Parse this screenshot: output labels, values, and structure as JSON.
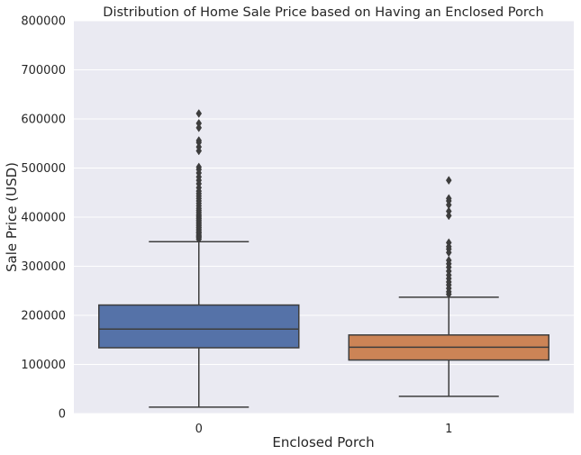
{
  "chart_data": {
    "type": "box",
    "title": "Distribution of Home Sale Price based on Having an Enclosed Porch",
    "xlabel": "Enclosed Porch",
    "ylabel": "Sale Price (USD)",
    "categories": [
      "0",
      "1"
    ],
    "ylim": [
      0,
      800000
    ],
    "yticks": [
      "0",
      "100000",
      "200000",
      "300000",
      "400000",
      "500000",
      "600000",
      "700000",
      "800000"
    ],
    "grid": true,
    "boxes": [
      {
        "category": "0",
        "color": "#5572a8",
        "whisker_low": 13000,
        "q1": 134000,
        "median": 172000,
        "q3": 221000,
        "whisker_high": 350000,
        "outliers": [
          355000,
          358000,
          360000,
          362000,
          365000,
          368000,
          370000,
          373000,
          376000,
          379000,
          382000,
          385000,
          388000,
          391000,
          394000,
          397000,
          400000,
          403000,
          406000,
          410000,
          414000,
          418000,
          423000,
          428000,
          433000,
          438000,
          443000,
          448000,
          453000,
          460000,
          468000,
          475000,
          482000,
          490000,
          497000,
          502000,
          535000,
          543000,
          552000,
          556000,
          582000,
          591000,
          611000
        ]
      },
      {
        "category": "1",
        "color": "#cc8456",
        "whisker_low": 35000,
        "q1": 109000,
        "median": 135000,
        "q3": 160000,
        "whisker_high": 237000,
        "outliers": [
          243000,
          248000,
          255000,
          262000,
          268000,
          275000,
          282000,
          290000,
          298000,
          305000,
          312000,
          328000,
          335000,
          340000,
          348000,
          403000,
          412000,
          425000,
          433000,
          438000,
          475000
        ]
      }
    ]
  }
}
